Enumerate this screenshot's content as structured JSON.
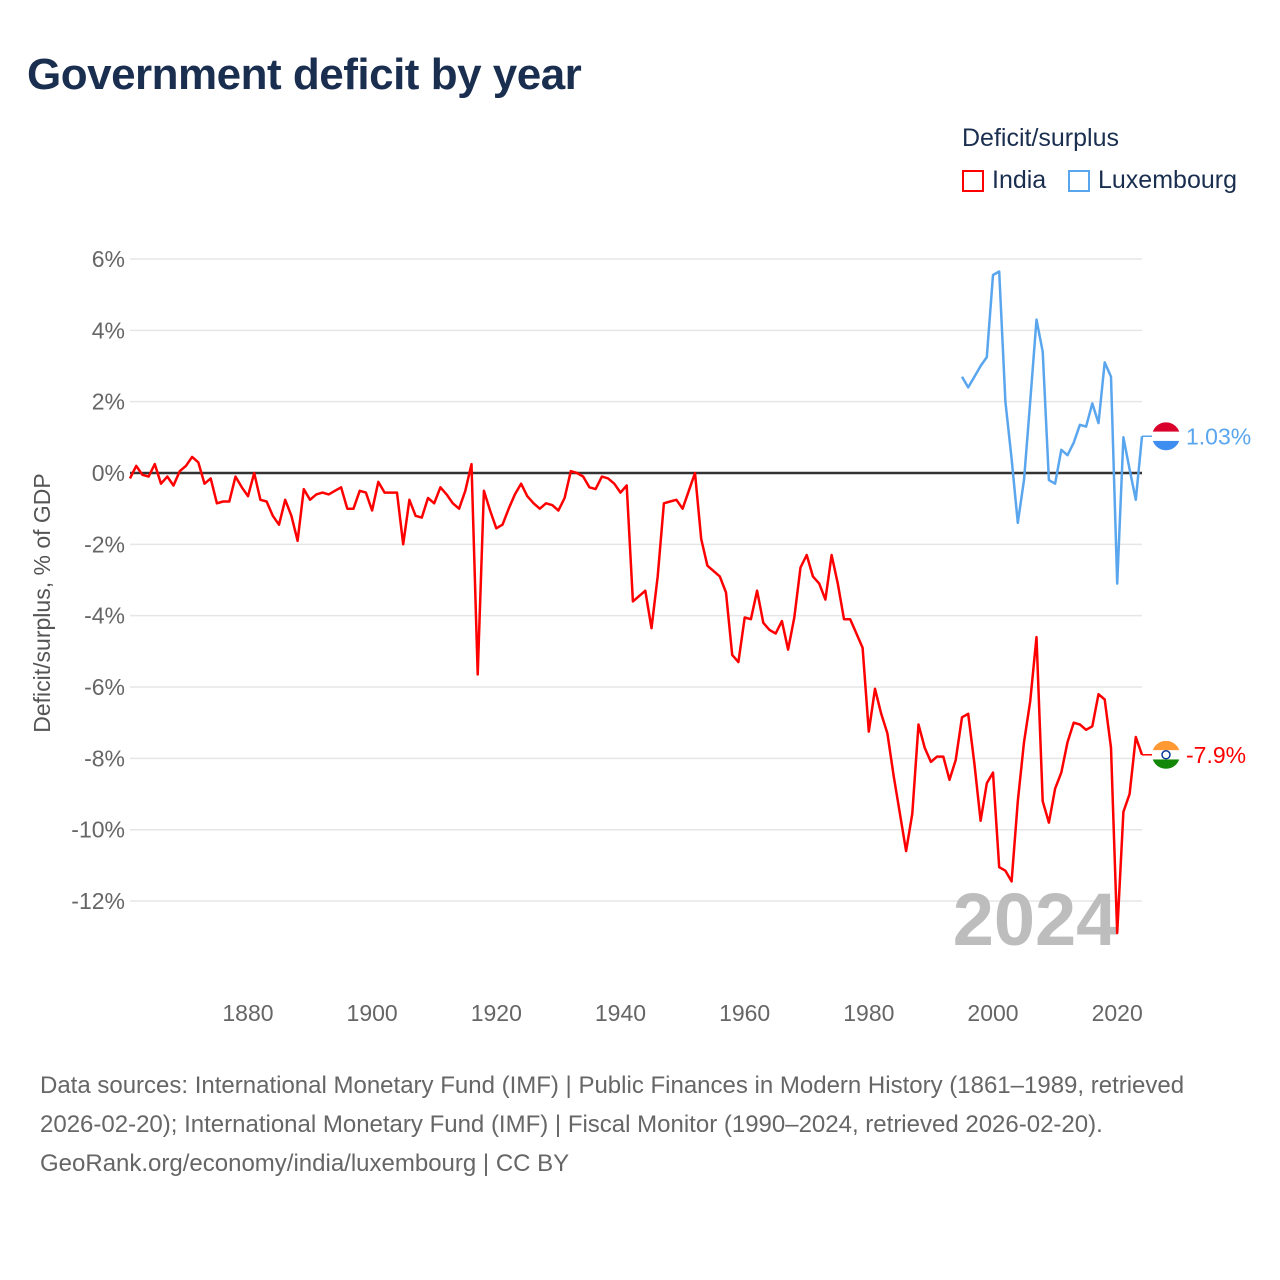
{
  "title": "Government deficit by year",
  "legend": {
    "title": "Deficit/surplus",
    "items": [
      {
        "name": "India",
        "color": "#ff0000"
      },
      {
        "name": "Luxembourg",
        "color": "#5aa6ee"
      }
    ]
  },
  "footer": {
    "sources": "Data sources: International Monetary Fund (IMF) | Public Finances in Modern History (1861–1989, retrieved 2026-02-20); International Monetary Fund (IMF) | Fiscal Monitor (1990–2024, retrieved 2026-02-20).",
    "credit": "GeoRank.org/economy/india/luxembourg | CC BY"
  },
  "chart_data": {
    "type": "line",
    "title": "Government deficit by year",
    "xlabel": "",
    "ylabel": "Deficit/surplus, % of GDP",
    "xlim": [
      1861,
      2024
    ],
    "ylim": [
      -14,
      7
    ],
    "x_ticks": [
      "1880",
      "1900",
      "1920",
      "1940",
      "1960",
      "1980",
      "2000",
      "2020"
    ],
    "y_ticks": [
      "6%",
      "4%",
      "2%",
      "0%",
      "-2%",
      "-4%",
      "-6%",
      "-8%",
      "-10%",
      "-12%"
    ],
    "current_year": "2024",
    "series": [
      {
        "name": "India",
        "color": "#ff0000",
        "start_year": 1861,
        "end_label": "-7.9%",
        "flag": "india-flag",
        "values": [
          -0.15,
          0.2,
          -0.05,
          -0.1,
          0.25,
          -0.3,
          -0.1,
          -0.35,
          0.05,
          0.2,
          0.45,
          0.3,
          -0.3,
          -0.15,
          -0.85,
          -0.8,
          -0.8,
          -0.1,
          -0.4,
          -0.65,
          0,
          -0.75,
          -0.8,
          -1.2,
          -1.45,
          -0.75,
          -1.2,
          -1.9,
          -0.45,
          -0.75,
          -0.6,
          -0.55,
          -0.6,
          -0.5,
          -0.4,
          -1.0,
          -1.0,
          -0.5,
          -0.55,
          -1.05,
          -0.25,
          -0.55,
          -0.55,
          -0.55,
          -2.0,
          -0.75,
          -1.2,
          -1.25,
          -0.7,
          -0.85,
          -0.4,
          -0.6,
          -0.85,
          -1.0,
          -0.5,
          0.25,
          -5.65,
          -0.5,
          -1.05,
          -1.55,
          -1.45,
          -1.0,
          -0.6,
          -0.3,
          -0.65,
          -0.85,
          -1.0,
          -0.85,
          -0.9,
          -1.05,
          -0.7,
          0.05,
          0,
          -0.1,
          -0.4,
          -0.45,
          -0.1,
          -0.15,
          -0.3,
          -0.55,
          -0.35,
          -3.6,
          -3.45,
          -3.3,
          -4.35,
          -2.9,
          -0.85,
          -0.8,
          -0.75,
          -1.0,
          -0.5,
          0,
          -1.85,
          -2.6,
          -2.75,
          -2.9,
          -3.35,
          -5.1,
          -5.3,
          -4.05,
          -4.1,
          -3.3,
          -4.2,
          -4.4,
          -4.5,
          -4.15,
          -4.95,
          -4.05,
          -2.65,
          -2.3,
          -2.9,
          -3.1,
          -3.55,
          -2.3,
          -3.1,
          -4.1,
          -4.1,
          -4.5,
          -4.9,
          -7.25,
          -6.05,
          -6.75,
          -7.3,
          -8.5,
          -9.55,
          -10.6,
          -9.55,
          -7.05,
          -7.7,
          -8.1,
          -7.95,
          -7.95,
          -8.6,
          -8.05,
          -6.85,
          -6.75,
          -8.15,
          -9.75,
          -8.7,
          -8.4,
          -11.05,
          -11.15,
          -11.45,
          -9.2,
          -7.55,
          -6.4,
          -4.6,
          -9.2,
          -9.8,
          -8.85,
          -8.4,
          -7.55,
          -7.0,
          -7.05,
          -7.2,
          -7.1,
          -6.2,
          -6.35,
          -7.7,
          -12.9,
          -9.5,
          -9.0,
          -7.4,
          -7.9
        ]
      },
      {
        "name": "Luxembourg",
        "color": "#5aa6ee",
        "start_year": 1995,
        "end_label": "1.03%",
        "flag": "luxembourg-flag",
        "values": [
          2.7,
          2.4,
          2.7,
          3.0,
          3.25,
          5.55,
          5.65,
          2.0,
          0.4,
          -1.4,
          -0.2,
          2.0,
          4.3,
          3.4,
          -0.2,
          -0.3,
          0.65,
          0.5,
          0.85,
          1.35,
          1.3,
          1.95,
          1.4,
          3.1,
          2.7,
          -3.1,
          1.0,
          0.1,
          -0.75,
          1.03
        ]
      }
    ]
  }
}
